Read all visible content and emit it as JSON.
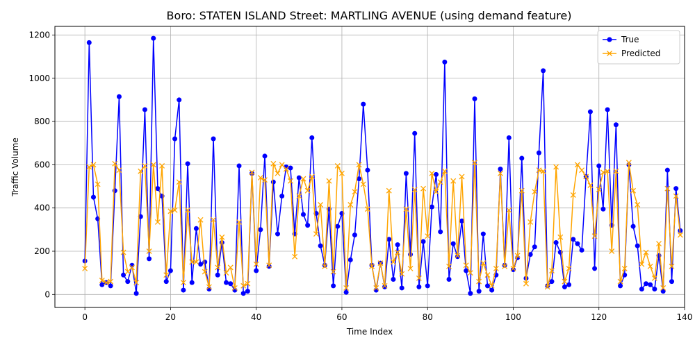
{
  "chart_data": {
    "type": "line",
    "title": "Boro: STATEN ISLAND Street: MARTLING AVENUE (using demand feature)",
    "xlabel": "Time Index",
    "ylabel": "Traffic Volume",
    "xlim": [
      -7,
      140
    ],
    "ylim": [
      -60,
      1240
    ],
    "xticks": [
      0,
      20,
      40,
      60,
      80,
      100,
      120,
      140
    ],
    "yticks": [
      0,
      200,
      400,
      600,
      800,
      1000,
      1200
    ],
    "grid": true,
    "legend_position": "top-right",
    "series": [
      {
        "name": "True",
        "color": "#0000ff",
        "marker": "circle",
        "values": [
          155,
          1165,
          450,
          350,
          45,
          55,
          40,
          480,
          915,
          90,
          60,
          135,
          5,
          360,
          855,
          165,
          1185,
          490,
          455,
          60,
          110,
          720,
          900,
          20,
          605,
          55,
          305,
          140,
          150,
          25,
          720,
          90,
          240,
          55,
          50,
          20,
          595,
          5,
          15,
          560,
          110,
          300,
          640,
          130,
          520,
          280,
          455,
          590,
          585,
          280,
          540,
          370,
          320,
          725,
          375,
          225,
          135,
          395,
          40,
          315,
          375,
          10,
          160,
          275,
          535,
          880,
          575,
          135,
          20,
          145,
          35,
          255,
          70,
          230,
          30,
          560,
          185,
          745,
          35,
          245,
          40,
          405,
          555,
          290,
          1075,
          70,
          235,
          175,
          340,
          110,
          5,
          905,
          15,
          280,
          40,
          20,
          90,
          580,
          135,
          725,
          115,
          170,
          630,
          75,
          185,
          220,
          655,
          1035,
          40,
          60,
          240,
          195,
          35,
          45,
          255,
          235,
          205,
          545,
          845,
          120,
          595,
          395,
          855,
          320,
          785,
          40,
          90,
          600,
          315,
          225,
          25,
          50,
          45,
          25,
          180,
          15,
          575,
          60,
          490,
          295
        ]
      },
      {
        "name": "Predicted",
        "color": "#ffa500",
        "marker": "x",
        "values": [
          120,
          590,
          600,
          510,
          65,
          55,
          60,
          605,
          575,
          195,
          105,
          125,
          55,
          570,
          595,
          200,
          600,
          335,
          595,
          90,
          385,
          390,
          520,
          55,
          390,
          150,
          150,
          345,
          105,
          35,
          345,
          125,
          265,
          100,
          125,
          30,
          335,
          40,
          50,
          565,
          140,
          540,
          530,
          135,
          605,
          560,
          600,
          580,
          525,
          175,
          455,
          535,
          480,
          545,
          280,
          415,
          130,
          525,
          105,
          595,
          560,
          30,
          415,
          475,
          600,
          510,
          395,
          130,
          30,
          145,
          40,
          480,
          150,
          195,
          95,
          395,
          120,
          485,
          75,
          490,
          270,
          560,
          475,
          520,
          570,
          130,
          525,
          180,
          545,
          135,
          100,
          610,
          60,
          145,
          90,
          40,
          120,
          560,
          130,
          390,
          120,
          180,
          480,
          50,
          335,
          475,
          575,
          570,
          35,
          110,
          590,
          265,
          60,
          120,
          460,
          600,
          575,
          545,
          505,
          270,
          485,
          565,
          570,
          200,
          570,
          60,
          120,
          610,
          480,
          415,
          140,
          195,
          130,
          75,
          235,
          30,
          490,
          130,
          455,
          275
        ]
      }
    ]
  }
}
